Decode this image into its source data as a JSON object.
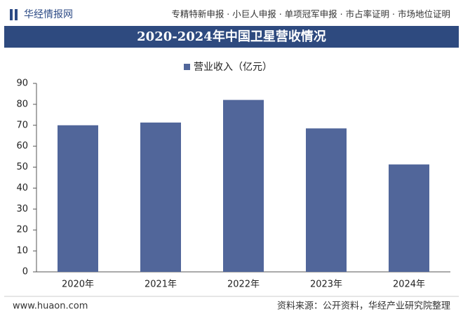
{
  "header": {
    "brand": "华经情报网",
    "services": "专精特新申报 · 小巨人申报 · 单项冠军申报 · 市占率证明 · 市场地位证明"
  },
  "chart_data": {
    "type": "bar",
    "title": "2020-2024年中国卫星营收情况",
    "categories": [
      "2020年",
      "2021年",
      "2022年",
      "2023年",
      "2024年"
    ],
    "series": [
      {
        "name": "营业收入（亿元）",
        "color": "#51669a",
        "values": [
          70,
          71.3,
          82.1,
          68.5,
          51.3
        ]
      }
    ],
    "ylim": [
      0,
      90
    ],
    "yticks": [
      0,
      10,
      20,
      30,
      40,
      50,
      60,
      70,
      80,
      90
    ],
    "grid": false,
    "legend": "top"
  },
  "footer": {
    "site": "www.huaon.com",
    "source": "资料来源：公开资料，华经产业研究院整理"
  }
}
